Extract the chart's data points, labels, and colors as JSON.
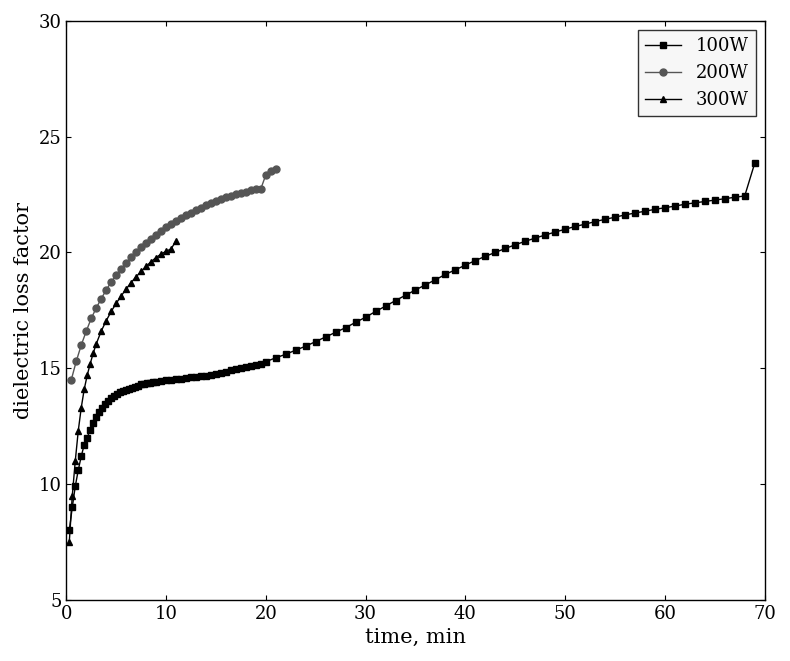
{
  "title": "",
  "xlabel": "time, min",
  "ylabel": "dielectric loss factor",
  "xlim": [
    0,
    70
  ],
  "ylim": [
    5,
    30
  ],
  "xticks": [
    0,
    10,
    20,
    30,
    40,
    50,
    60,
    70
  ],
  "yticks": [
    5,
    10,
    15,
    20,
    25,
    30
  ],
  "background_color": "#ffffff",
  "series": [
    {
      "label": "100W",
      "marker": "s",
      "color": "#000000",
      "x": [
        0.3,
        0.6,
        0.9,
        1.2,
        1.5,
        1.8,
        2.1,
        2.4,
        2.7,
        3.0,
        3.3,
        3.6,
        3.9,
        4.2,
        4.5,
        4.8,
        5.1,
        5.4,
        5.7,
        6.0,
        6.3,
        6.6,
        6.9,
        7.2,
        7.5,
        7.8,
        8.1,
        8.4,
        8.7,
        9.0,
        9.5,
        10.0,
        10.5,
        11.0,
        11.5,
        12.0,
        12.5,
        13.0,
        13.5,
        14.0,
        14.5,
        15.0,
        15.5,
        16.0,
        16.5,
        17.0,
        17.5,
        18.0,
        18.5,
        19.0,
        19.5,
        20.0,
        21.0,
        22.0,
        23.0,
        24.0,
        25.0,
        26.0,
        27.0,
        28.0,
        29.0,
        30.0,
        31.0,
        32.0,
        33.0,
        34.0,
        35.0,
        36.0,
        37.0,
        38.0,
        39.0,
        40.0,
        41.0,
        42.0,
        43.0,
        44.0,
        45.0,
        46.0,
        47.0,
        48.0,
        49.0,
        50.0,
        51.0,
        52.0,
        53.0,
        54.0,
        55.0,
        56.0,
        57.0,
        58.0,
        59.0,
        60.0,
        61.0,
        62.0,
        63.0,
        64.0,
        65.0,
        66.0,
        67.0,
        68.0,
        69.0
      ],
      "y": [
        8.0,
        9.0,
        9.9,
        10.6,
        11.2,
        11.7,
        12.0,
        12.35,
        12.65,
        12.9,
        13.1,
        13.3,
        13.45,
        13.6,
        13.7,
        13.8,
        13.88,
        13.95,
        14.0,
        14.05,
        14.1,
        14.15,
        14.2,
        14.25,
        14.3,
        14.32,
        14.35,
        14.37,
        14.4,
        14.42,
        14.45,
        14.48,
        14.5,
        14.52,
        14.55,
        14.57,
        14.6,
        14.62,
        14.65,
        14.68,
        14.72,
        14.75,
        14.8,
        14.85,
        14.9,
        14.95,
        15.0,
        15.05,
        15.1,
        15.15,
        15.2,
        15.28,
        15.45,
        15.6,
        15.78,
        15.95,
        16.15,
        16.35,
        16.55,
        16.75,
        16.98,
        17.2,
        17.45,
        17.68,
        17.92,
        18.15,
        18.38,
        18.6,
        18.82,
        19.05,
        19.25,
        19.45,
        19.65,
        19.83,
        20.0,
        20.17,
        20.33,
        20.48,
        20.62,
        20.75,
        20.88,
        21.0,
        21.12,
        21.22,
        21.33,
        21.43,
        21.52,
        21.62,
        21.7,
        21.78,
        21.86,
        21.93,
        22.0,
        22.08,
        22.14,
        22.2,
        22.26,
        22.32,
        22.38,
        22.44,
        23.85
      ]
    },
    {
      "label": "200W",
      "marker": "o",
      "color": "#555555",
      "x": [
        0.5,
        1.0,
        1.5,
        2.0,
        2.5,
        3.0,
        3.5,
        4.0,
        4.5,
        5.0,
        5.5,
        6.0,
        6.5,
        7.0,
        7.5,
        8.0,
        8.5,
        9.0,
        9.5,
        10.0,
        10.5,
        11.0,
        11.5,
        12.0,
        12.5,
        13.0,
        13.5,
        14.0,
        14.5,
        15.0,
        15.5,
        16.0,
        16.5,
        17.0,
        17.5,
        18.0,
        18.5,
        19.0,
        19.5,
        20.0,
        20.5,
        21.0
      ],
      "y": [
        14.5,
        15.3,
        16.0,
        16.6,
        17.15,
        17.6,
        18.0,
        18.38,
        18.72,
        19.02,
        19.3,
        19.55,
        19.8,
        20.02,
        20.22,
        20.42,
        20.6,
        20.77,
        20.93,
        21.08,
        21.22,
        21.35,
        21.48,
        21.6,
        21.72,
        21.83,
        21.93,
        22.03,
        22.13,
        22.22,
        22.3,
        22.38,
        22.45,
        22.52,
        22.58,
        22.63,
        22.68,
        22.72,
        22.75,
        23.35,
        23.5,
        23.6
      ]
    },
    {
      "label": "300W",
      "marker": "^",
      "color": "#000000",
      "x": [
        0.3,
        0.6,
        0.9,
        1.2,
        1.5,
        1.8,
        2.1,
        2.4,
        2.7,
        3.0,
        3.5,
        4.0,
        4.5,
        5.0,
        5.5,
        6.0,
        6.5,
        7.0,
        7.5,
        8.0,
        8.5,
        9.0,
        9.5,
        10.0,
        10.5,
        11.0
      ],
      "y": [
        7.5,
        9.5,
        11.0,
        12.3,
        13.3,
        14.1,
        14.7,
        15.2,
        15.65,
        16.05,
        16.6,
        17.05,
        17.45,
        17.8,
        18.12,
        18.42,
        18.7,
        18.95,
        19.18,
        19.4,
        19.6,
        19.78,
        19.93,
        20.05,
        20.15,
        20.5
      ]
    }
  ],
  "legend_loc": "upper right",
  "markersize": 5,
  "linewidth": 1.0,
  "tick_fontsize": 13,
  "label_fontsize": 15
}
